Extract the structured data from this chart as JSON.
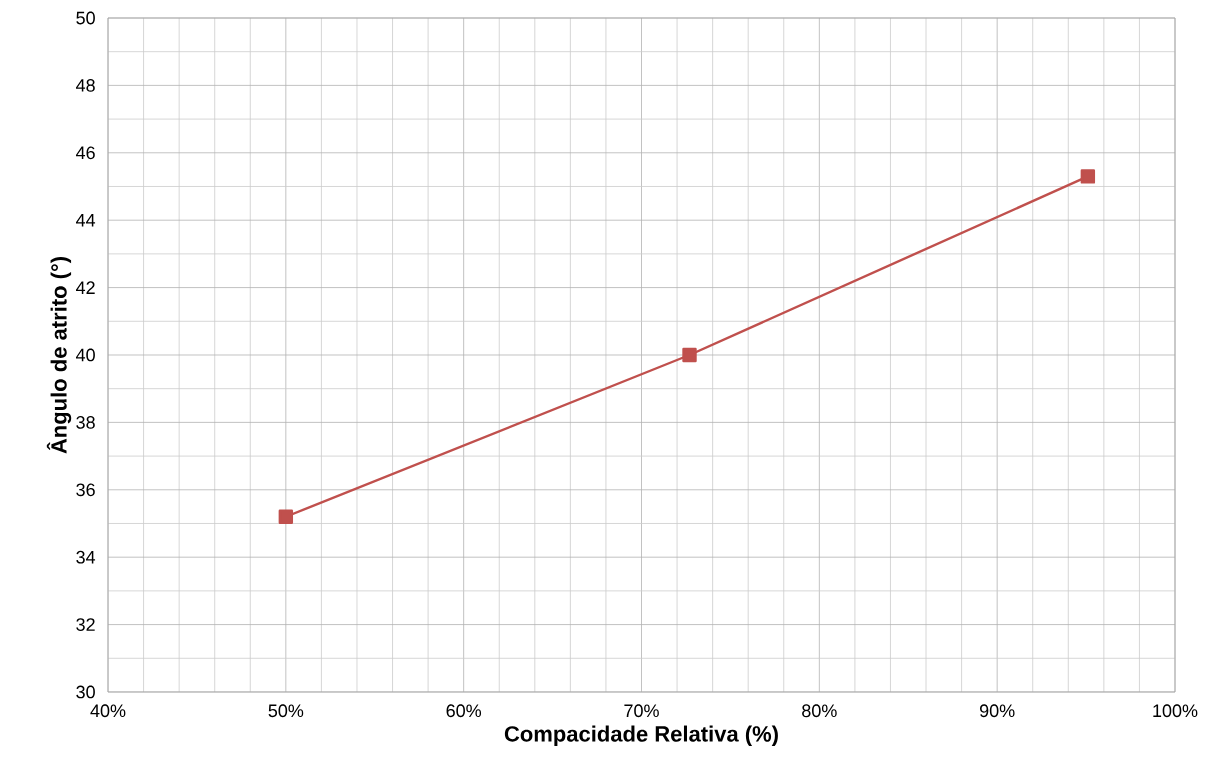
{
  "chart_data": {
    "type": "line",
    "xlabel": "Compacidade Relativa (%)",
    "ylabel": "Ângulo de atrito (°)",
    "x": [
      50,
      72.7,
      95.1
    ],
    "series": [
      {
        "color": "#c0504d",
        "values": [
          35.2,
          40.0,
          45.3
        ]
      }
    ],
    "xlim": [
      40,
      100
    ],
    "ylim": [
      30,
      50
    ],
    "xticks": [
      {
        "value": 40,
        "label": "40%"
      },
      {
        "value": 50,
        "label": "50%"
      },
      {
        "value": 60,
        "label": "60%"
      },
      {
        "value": 70,
        "label": "70%"
      },
      {
        "value": 80,
        "label": "80%"
      },
      {
        "value": 90,
        "label": "90%"
      },
      {
        "value": 100,
        "label": "100%"
      }
    ],
    "yticks": [
      30,
      32,
      34,
      36,
      38,
      40,
      42,
      44,
      46,
      48,
      50
    ],
    "grid": true,
    "marker": "square",
    "line_style": "solid"
  }
}
